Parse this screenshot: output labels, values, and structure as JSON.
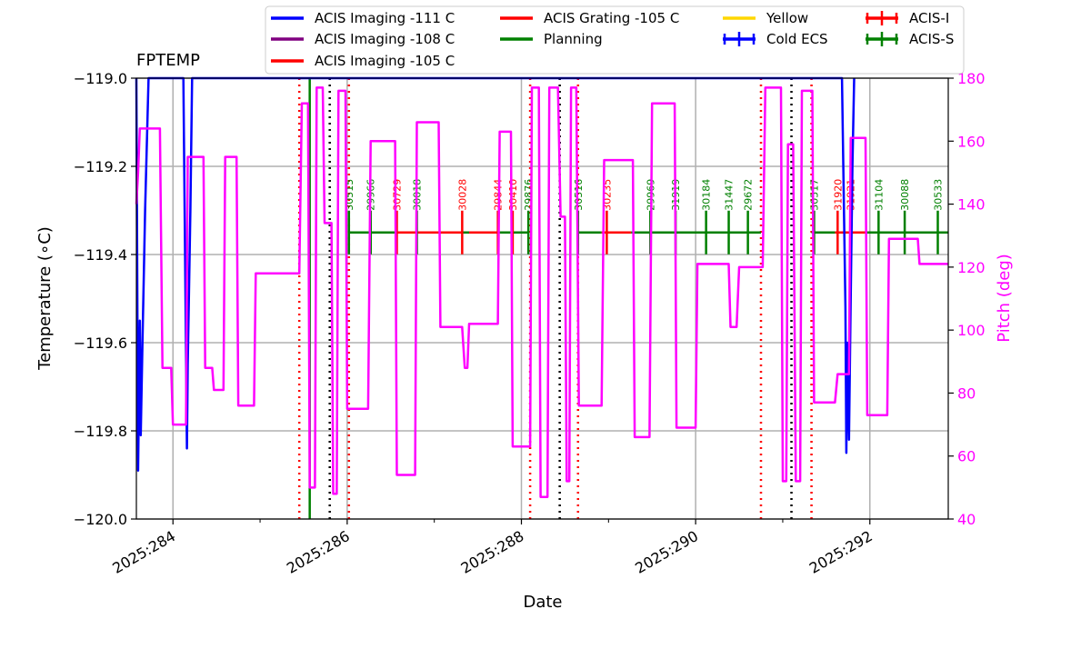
{
  "chart_data": {
    "type": "line",
    "title": "FPTEMP",
    "xlabel": "Date",
    "ylabel": "Temperature ($^\\circ$C)",
    "ylabel_display": "Temperature (∘C)",
    "y2label": "Pitch (deg)",
    "xlim": [
      283.58,
      292.9
    ],
    "ylim": [
      -120.0,
      -119.0
    ],
    "y2lim": [
      40,
      180
    ],
    "x_ticks": [
      284,
      286,
      288,
      290,
      292
    ],
    "x_tick_labels": [
      "2025:284",
      "2025:286",
      "2025:288",
      "2025:290",
      "2025:292"
    ],
    "y_ticks": [
      -120.0,
      -119.8,
      -119.6,
      -119.4,
      -119.2,
      -119.0
    ],
    "y_tick_labels": [
      "−120.0",
      "−119.8",
      "−119.6",
      "−119.4",
      "−119.2",
      "−119.0"
    ],
    "y2_ticks": [
      40,
      60,
      80,
      100,
      120,
      140,
      160,
      180
    ],
    "y2_tick_labels": [
      "40",
      "60",
      "80",
      "100",
      "120",
      "140",
      "160",
      "180"
    ],
    "grid": true,
    "legend": {
      "location": "top-center",
      "entries": [
        {
          "label": "ACIS Imaging -111 C",
          "color": "#0000ff",
          "marker": "line"
        },
        {
          "label": "ACIS Imaging -108 C",
          "color": "#800080",
          "marker": "line"
        },
        {
          "label": "ACIS Imaging -105 C",
          "color": "#ff0000",
          "marker": "line"
        },
        {
          "label": "ACIS Grating -105 C",
          "color": "#ff0000",
          "marker": "line"
        },
        {
          "label": "Planning",
          "color": "#008000",
          "marker": "line"
        },
        {
          "label": "Yellow",
          "color": "#ffd700",
          "marker": "line"
        },
        {
          "label": "Cold ECS",
          "color": "#0000ff",
          "marker": "plus"
        },
        {
          "label": "ACIS-I",
          "color": "#ff0000",
          "marker": "plus"
        },
        {
          "label": "ACIS-S",
          "color": "#008000",
          "marker": "plus"
        }
      ]
    },
    "series": [
      {
        "name": "FPTEMP",
        "color": "#0000ff",
        "axis": "left",
        "points": [
          [
            283.58,
            -119.0
          ],
          [
            283.6,
            -119.89
          ],
          [
            283.62,
            -119.55
          ],
          [
            283.63,
            -119.81
          ],
          [
            283.65,
            -119.6
          ],
          [
            283.68,
            -119.3
          ],
          [
            283.72,
            -119.0
          ],
          [
            284.12,
            -119.0
          ],
          [
            284.16,
            -119.84
          ],
          [
            284.17,
            -119.65
          ],
          [
            284.2,
            -119.3
          ],
          [
            284.22,
            -119.0
          ],
          [
            291.68,
            -119.0
          ],
          [
            291.72,
            -119.52
          ],
          [
            291.73,
            -119.85
          ],
          [
            291.74,
            -119.6
          ],
          [
            291.76,
            -119.82
          ],
          [
            291.78,
            -119.5
          ],
          [
            291.8,
            -119.2
          ],
          [
            291.82,
            -119.0
          ]
        ]
      },
      {
        "name": "Pitch",
        "color": "#ff00ff",
        "axis": "right",
        "points": [
          [
            283.58,
            140
          ],
          [
            283.6,
            150
          ],
          [
            283.62,
            164
          ],
          [
            283.85,
            164
          ],
          [
            283.88,
            88
          ],
          [
            283.98,
            88
          ],
          [
            284.0,
            70
          ],
          [
            284.15,
            70
          ],
          [
            284.17,
            155
          ],
          [
            284.35,
            155
          ],
          [
            284.37,
            88
          ],
          [
            284.45,
            88
          ],
          [
            284.47,
            81
          ],
          [
            284.58,
            81
          ],
          [
            284.6,
            155
          ],
          [
            284.73,
            155
          ],
          [
            284.75,
            76
          ],
          [
            284.93,
            76
          ],
          [
            284.95,
            118
          ],
          [
            285.45,
            118
          ],
          [
            285.48,
            172
          ],
          [
            285.55,
            172
          ],
          [
            285.57,
            50
          ],
          [
            285.63,
            50
          ],
          [
            285.65,
            177
          ],
          [
            285.72,
            177
          ],
          [
            285.74,
            134
          ],
          [
            285.82,
            134
          ],
          [
            285.84,
            48
          ],
          [
            285.88,
            48
          ],
          [
            285.9,
            176
          ],
          [
            285.98,
            176
          ],
          [
            286.0,
            75
          ],
          [
            286.24,
            75
          ],
          [
            286.27,
            160
          ],
          [
            286.55,
            160
          ],
          [
            286.57,
            54
          ],
          [
            286.78,
            54
          ],
          [
            286.8,
            166
          ],
          [
            287.05,
            166
          ],
          [
            287.07,
            101
          ],
          [
            287.32,
            101
          ],
          [
            287.35,
            88
          ],
          [
            287.38,
            88
          ],
          [
            287.4,
            102
          ],
          [
            287.73,
            102
          ],
          [
            287.75,
            163
          ],
          [
            287.88,
            163
          ],
          [
            287.9,
            63
          ],
          [
            288.1,
            63
          ],
          [
            288.12,
            177
          ],
          [
            288.2,
            177
          ],
          [
            288.22,
            47
          ],
          [
            288.3,
            47
          ],
          [
            288.32,
            177
          ],
          [
            288.42,
            177
          ],
          [
            288.45,
            136
          ],
          [
            288.5,
            136
          ],
          [
            288.52,
            52
          ],
          [
            288.55,
            52
          ],
          [
            288.57,
            177
          ],
          [
            288.63,
            177
          ],
          [
            288.66,
            76
          ],
          [
            288.92,
            76
          ],
          [
            288.95,
            154
          ],
          [
            289.28,
            154
          ],
          [
            289.3,
            66
          ],
          [
            289.47,
            66
          ],
          [
            289.5,
            172
          ],
          [
            289.76,
            172
          ],
          [
            289.78,
            69
          ],
          [
            290.0,
            69
          ],
          [
            290.02,
            121
          ],
          [
            290.38,
            121
          ],
          [
            290.4,
            101
          ],
          [
            290.47,
            101
          ],
          [
            290.5,
            120
          ],
          [
            290.77,
            120
          ],
          [
            290.8,
            177
          ],
          [
            290.98,
            177
          ],
          [
            291.0,
            52
          ],
          [
            291.04,
            52
          ],
          [
            291.06,
            159
          ],
          [
            291.12,
            159
          ],
          [
            291.15,
            52
          ],
          [
            291.2,
            52
          ],
          [
            291.22,
            176
          ],
          [
            291.34,
            176
          ],
          [
            291.36,
            77
          ],
          [
            291.6,
            77
          ],
          [
            291.63,
            86
          ],
          [
            291.76,
            86
          ],
          [
            291.78,
            161
          ],
          [
            291.95,
            161
          ],
          [
            291.97,
            73
          ],
          [
            292.2,
            73
          ],
          [
            292.22,
            129
          ],
          [
            292.55,
            129
          ],
          [
            292.57,
            121
          ],
          [
            292.9,
            121
          ]
        ]
      }
    ],
    "vertical_lines": [
      {
        "x": 285.45,
        "style": "dotted",
        "color": "#ff0000"
      },
      {
        "x": 285.8,
        "style": "dotted",
        "color": "#000000"
      },
      {
        "x": 286.02,
        "style": "dotted",
        "color": "#ff0000"
      },
      {
        "x": 288.1,
        "style": "dotted",
        "color": "#ff0000"
      },
      {
        "x": 288.44,
        "style": "dotted",
        "color": "#000000"
      },
      {
        "x": 288.65,
        "style": "dotted",
        "color": "#ff0000"
      },
      {
        "x": 290.75,
        "style": "dotted",
        "color": "#ff0000"
      },
      {
        "x": 291.1,
        "style": "dotted",
        "color": "#000000"
      },
      {
        "x": 291.33,
        "style": "dotted",
        "color": "#ff0000"
      },
      {
        "x": 285.57,
        "style": "solid",
        "color": "#008000"
      }
    ],
    "planning_segments": [
      {
        "x0": 286.02,
        "x1": 286.57,
        "color": "#008000"
      },
      {
        "x0": 286.57,
        "x1": 287.32,
        "color": "#ff0000"
      },
      {
        "x0": 287.32,
        "x1": 287.4,
        "color": "#008000"
      },
      {
        "x0": 287.4,
        "x1": 287.73,
        "color": "#ff0000"
      },
      {
        "x0": 287.73,
        "x1": 288.08,
        "color": "#008000"
      },
      {
        "x0": 288.65,
        "x1": 288.92,
        "color": "#008000"
      },
      {
        "x0": 288.92,
        "x1": 289.26,
        "color": "#ff0000"
      },
      {
        "x0": 289.26,
        "x1": 290.75,
        "color": "#008000"
      },
      {
        "x0": 291.33,
        "x1": 291.6,
        "color": "#008000"
      },
      {
        "x0": 291.6,
        "x1": 291.95,
        "color": "#ff0000"
      },
      {
        "x0": 291.95,
        "x1": 292.9,
        "color": "#008000"
      }
    ],
    "planning_level": -119.35,
    "obsids": [
      {
        "x": 286.02,
        "label": "30515",
        "color": "#008000"
      },
      {
        "x": 286.27,
        "label": "29966",
        "color": "#008000"
      },
      {
        "x": 286.57,
        "label": "30729",
        "color": "#ff0000"
      },
      {
        "x": 286.8,
        "label": "30018",
        "color": "#008000"
      },
      {
        "x": 287.32,
        "label": "30028",
        "color": "#ff0000"
      },
      {
        "x": 287.73,
        "label": "29844",
        "color": "#ff0000"
      },
      {
        "x": 287.9,
        "label": "30410",
        "color": "#ff0000"
      },
      {
        "x": 288.08,
        "label": "29876",
        "color": "#008000"
      },
      {
        "x": 288.65,
        "label": "30516",
        "color": "#008000"
      },
      {
        "x": 288.98,
        "label": "30235",
        "color": "#ff0000"
      },
      {
        "x": 289.48,
        "label": "29969",
        "color": "#008000"
      },
      {
        "x": 289.77,
        "label": "31919",
        "color": "#008000"
      },
      {
        "x": 290.12,
        "label": "30184",
        "color": "#008000"
      },
      {
        "x": 290.38,
        "label": "31447",
        "color": "#008000"
      },
      {
        "x": 290.6,
        "label": "29672",
        "color": "#008000"
      },
      {
        "x": 291.36,
        "label": "30517",
        "color": "#008000"
      },
      {
        "x": 291.63,
        "label": "31920",
        "color": "#ff0000"
      },
      {
        "x": 291.78,
        "label": "31921",
        "color": "#ff0000"
      },
      {
        "x": 292.1,
        "label": "31104",
        "color": "#008000"
      },
      {
        "x": 292.4,
        "label": "30088",
        "color": "#008000"
      },
      {
        "x": 292.78,
        "label": "30533",
        "color": "#008000"
      }
    ]
  }
}
